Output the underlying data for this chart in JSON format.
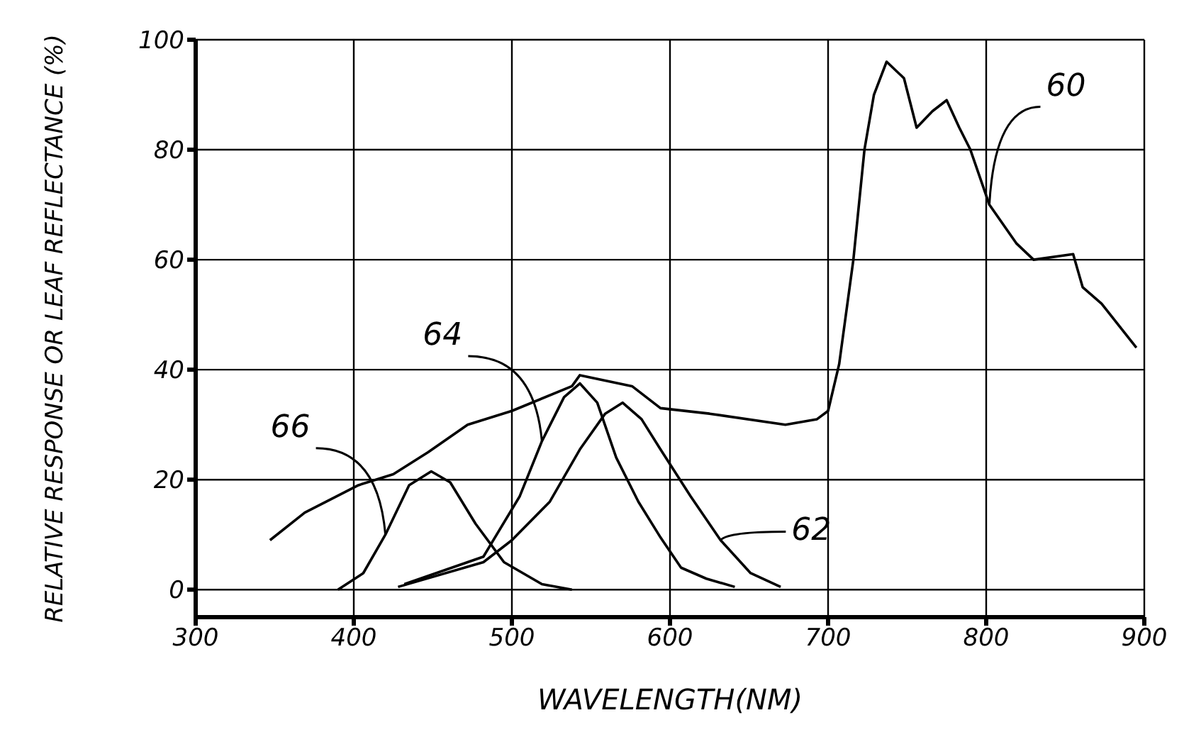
{
  "chart_data": {
    "type": "line",
    "xlabel": "WAVELENGTH(NM)",
    "ylabel": "RELATIVE RESPONSE OR LEAF REFLECTANCE (%)",
    "xlim": [
      300,
      900
    ],
    "xticks": [
      300,
      400,
      500,
      600,
      700,
      800,
      900
    ],
    "ylim": [
      -5,
      100
    ],
    "yticks": [
      0,
      20,
      40,
      60,
      80,
      100
    ],
    "grid": true,
    "legend": false,
    "marker": "none",
    "line_style": "solid",
    "series": [
      {
        "color": "#000000",
        "x": [
          347,
          369,
          403,
          425,
          447,
          472,
          500,
          538,
          543,
          576,
          594,
          625,
          673,
          693,
          700,
          707,
          716,
          723,
          729,
          737,
          748,
          756,
          766,
          775,
          783,
          790,
          802,
          819,
          830,
          855,
          861,
          873,
          895
        ],
        "values": [
          9,
          14,
          19,
          21,
          25,
          30,
          32.5,
          37,
          39,
          37,
          33,
          32,
          30,
          31,
          32.5,
          41,
          60,
          80,
          90,
          96,
          93,
          84,
          87,
          89,
          84,
          80,
          70,
          63,
          60,
          61,
          55,
          52,
          44
        ]
      },
      {
        "color": "#000000",
        "x": [
          432,
          482,
          505,
          519,
          533,
          543,
          554,
          566,
          580,
          594,
          607,
          623,
          641
        ],
        "values": [
          1,
          6,
          17,
          27,
          35,
          37.5,
          34,
          24,
          16,
          9.5,
          4,
          2,
          0.5
        ]
      },
      {
        "color": "#000000",
        "x": [
          390,
          406,
          420,
          435,
          449,
          461,
          477,
          495,
          519,
          538
        ],
        "values": [
          0,
          3,
          10,
          19,
          21.5,
          19.5,
          12,
          5,
          1,
          0
        ]
      },
      {
        "color": "#000000",
        "x": [
          428,
          482,
          500,
          524,
          543,
          559,
          570,
          582,
          594,
          613,
          632,
          651,
          670
        ],
        "values": [
          0.5,
          5,
          9,
          16,
          25.5,
          32,
          34,
          31,
          25.5,
          17,
          9,
          3,
          0.5
        ]
      }
    ],
    "annotations": [
      {
        "text": "60",
        "x": 802,
        "y": 70
      },
      {
        "text": "62",
        "x": 632,
        "y": 9
      },
      {
        "text": "64",
        "x": 519,
        "y": 27
      },
      {
        "text": "66",
        "x": 420,
        "y": 10
      }
    ]
  }
}
